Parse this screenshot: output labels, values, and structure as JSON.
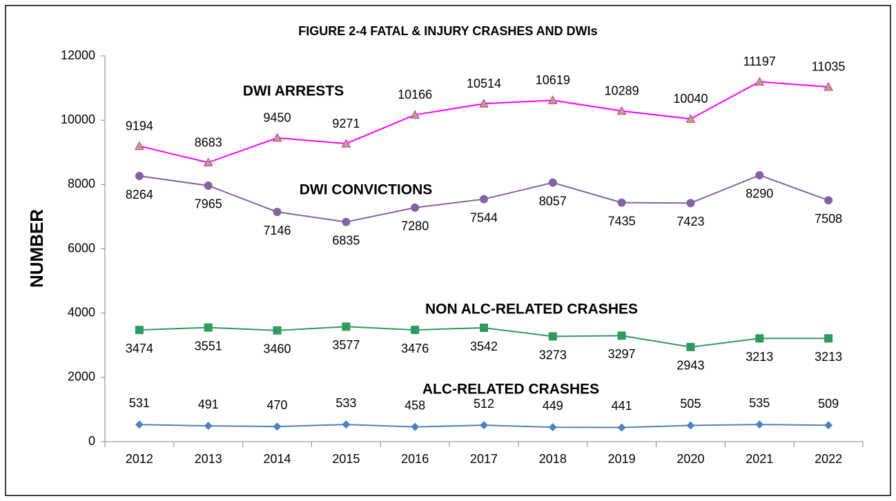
{
  "chart_data": {
    "type": "line",
    "title": "FIGURE 2-4 FATAL & INJURY CRASHES AND DWIs",
    "y_label": "NUMBER",
    "categories": [
      "2012",
      "2013",
      "2014",
      "2015",
      "2016",
      "2017",
      "2018",
      "2019",
      "2020",
      "2021",
      "2022"
    ],
    "ylim": [
      0,
      12000
    ],
    "yticks": [
      0,
      2000,
      4000,
      6000,
      8000,
      10000,
      12000
    ],
    "grid": false,
    "series": [
      {
        "name": "DWI ARRESTS",
        "color": "#ff00ff",
        "marker_color": "#9bbb59",
        "marker": "triangle",
        "values": [
          9194,
          8683,
          9450,
          9271,
          10166,
          10514,
          10619,
          10289,
          10040,
          11197,
          11035
        ]
      },
      {
        "name": "DWI CONVICTIONS",
        "color": "#8064a2",
        "marker_color": "#8064a2",
        "marker": "circle",
        "values": [
          8264,
          7965,
          7146,
          6835,
          7280,
          7544,
          8057,
          7435,
          7423,
          8290,
          7508
        ]
      },
      {
        "name": "NON ALC-RELATED CRASHES",
        "color": "#2e9a5e",
        "marker_color": "#2e9a5e",
        "marker": "square",
        "values": [
          3474,
          3551,
          3460,
          3577,
          3476,
          3542,
          3273,
          3297,
          2943,
          3213,
          3213
        ]
      },
      {
        "name": "ALC-RELATED CRASHES",
        "color": "#4f81bd",
        "marker_color": "#4f81bd",
        "marker": "diamond",
        "values": [
          531,
          491,
          470,
          533,
          458,
          512,
          449,
          441,
          505,
          535,
          509
        ]
      }
    ]
  }
}
